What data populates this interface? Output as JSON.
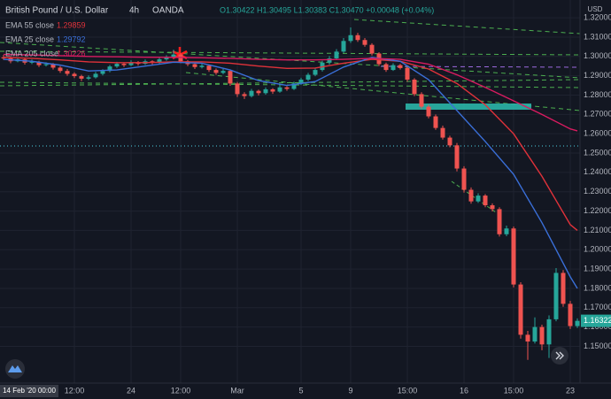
{
  "chart_data": {
    "type": "candlestick",
    "title": "British Pound / U.S. Dollar",
    "interval": "4h",
    "source": "OANDA",
    "ohlc_readout": "O1.30422 H1.30495 L1.30383 C1.30470 +0.00048 (+0.04%)",
    "y_unit": "USD",
    "cursor_label": "14 Feb '20 00:00",
    "up_color": "#26a69a",
    "down_color": "#ef5350",
    "grid": true,
    "categories": [
      null,
      null,
      null,
      null,
      null,
      null,
      null,
      null,
      null,
      null,
      "12:00",
      null,
      null,
      null,
      null,
      null,
      null,
      null,
      "24",
      null,
      null,
      null,
      null,
      null,
      null,
      "12:00",
      null,
      null,
      null,
      null,
      null,
      null,
      null,
      "Mar",
      null,
      null,
      null,
      null,
      null,
      null,
      null,
      null,
      "5",
      null,
      null,
      null,
      null,
      null,
      null,
      "9",
      null,
      null,
      null,
      null,
      null,
      null,
      null,
      "15:00",
      null,
      null,
      null,
      null,
      null,
      null,
      null,
      "16",
      null,
      null,
      null,
      null,
      null,
      null,
      "15:00",
      null,
      null,
      null,
      null,
      null,
      null,
      null,
      "23",
      null
    ],
    "ohlc": [
      [
        1.2995,
        1.3008,
        1.2982,
        1.299
      ],
      [
        1.299,
        1.3,
        1.2965,
        1.2975
      ],
      [
        1.2975,
        1.2995,
        1.297,
        1.2985
      ],
      [
        1.2985,
        1.2992,
        1.2958,
        1.2968
      ],
      [
        1.2968,
        1.2984,
        1.296,
        1.2972
      ],
      [
        1.2972,
        1.2978,
        1.2945,
        1.2955
      ],
      [
        1.2955,
        1.297,
        1.2948,
        1.296
      ],
      [
        1.296,
        1.2966,
        1.2932,
        1.2942
      ],
      [
        1.2942,
        1.295,
        1.2915,
        1.2925
      ],
      [
        1.2925,
        1.2935,
        1.29,
        1.291
      ],
      [
        1.291,
        1.2918,
        1.2888,
        1.2898
      ],
      [
        1.2898,
        1.2905,
        1.2872,
        1.2885
      ],
      [
        1.2885,
        1.2902,
        1.2878,
        1.2892
      ],
      [
        1.2892,
        1.292,
        1.2886,
        1.291
      ],
      [
        1.291,
        1.2934,
        1.2902,
        1.2925
      ],
      [
        1.2925,
        1.2956,
        1.2918,
        1.2948
      ],
      [
        1.2948,
        1.2972,
        1.294,
        1.2962
      ],
      [
        1.2962,
        1.2968,
        1.2945,
        1.2955
      ],
      [
        1.2955,
        1.298,
        1.295,
        1.297
      ],
      [
        1.297,
        1.2976,
        1.2952,
        1.2962
      ],
      [
        1.2962,
        1.2984,
        1.2956,
        1.2975
      ],
      [
        1.2975,
        1.298,
        1.2958,
        1.2968
      ],
      [
        1.2968,
        1.2994,
        1.2962,
        1.2985
      ],
      [
        1.2985,
        1.3006,
        1.2978,
        1.2998
      ],
      [
        1.2998,
        1.3035,
        1.299,
        1.301
      ],
      [
        1.301,
        1.3018,
        1.2965,
        1.2975
      ],
      [
        1.2975,
        1.2982,
        1.295,
        1.296
      ],
      [
        1.296,
        1.2966,
        1.2935,
        1.2945
      ],
      [
        1.2945,
        1.2962,
        1.2938,
        1.2952
      ],
      [
        1.2952,
        1.2958,
        1.292,
        1.293
      ],
      [
        1.293,
        1.2938,
        1.2905,
        1.2915
      ],
      [
        1.2915,
        1.2935,
        1.2908,
        1.2925
      ],
      [
        1.2925,
        1.293,
        1.2848,
        1.286
      ],
      [
        1.286,
        1.2868,
        1.279,
        1.2805
      ],
      [
        1.2805,
        1.2815,
        1.278,
        1.2795
      ],
      [
        1.2795,
        1.2832,
        1.2788,
        1.2822
      ],
      [
        1.2822,
        1.2828,
        1.2798,
        1.281
      ],
      [
        1.281,
        1.284,
        1.2802,
        1.283
      ],
      [
        1.283,
        1.2836,
        1.2806,
        1.2818
      ],
      [
        1.2818,
        1.285,
        1.2812,
        1.284
      ],
      [
        1.284,
        1.2846,
        1.2822,
        1.2832
      ],
      [
        1.2832,
        1.287,
        1.2826,
        1.286
      ],
      [
        1.286,
        1.289,
        1.2852,
        1.288
      ],
      [
        1.288,
        1.2915,
        1.2872,
        1.2905
      ],
      [
        1.2905,
        1.294,
        1.2898,
        1.293
      ],
      [
        1.293,
        1.2978,
        1.2922,
        1.2968
      ],
      [
        1.2968,
        1.3002,
        1.2958,
        1.299
      ],
      [
        1.299,
        1.3038,
        1.2982,
        1.3025
      ],
      [
        1.3025,
        1.3095,
        1.3018,
        1.308
      ],
      [
        1.308,
        1.315,
        1.307,
        1.311
      ],
      [
        1.311,
        1.3122,
        1.3075,
        1.3085
      ],
      [
        1.3085,
        1.3095,
        1.305,
        1.306
      ],
      [
        1.306,
        1.3068,
        1.3005,
        1.3015
      ],
      [
        1.3015,
        1.3022,
        1.295,
        1.296
      ],
      [
        1.296,
        1.2968,
        1.292,
        1.293
      ],
      [
        1.293,
        1.2965,
        1.2925,
        1.2955
      ],
      [
        1.2955,
        1.2962,
        1.2932,
        1.294
      ],
      [
        1.294,
        1.2948,
        1.287,
        1.288
      ],
      [
        1.288,
        1.2888,
        1.2795,
        1.2805
      ],
      [
        1.2805,
        1.2815,
        1.273,
        1.274
      ],
      [
        1.274,
        1.275,
        1.268,
        1.269
      ],
      [
        1.269,
        1.27,
        1.262,
        1.263
      ],
      [
        1.263,
        1.2642,
        1.257,
        1.258
      ],
      [
        1.258,
        1.259,
        1.253,
        1.254
      ],
      [
        1.254,
        1.2552,
        1.2405,
        1.242
      ],
      [
        1.242,
        1.2432,
        1.2295,
        1.231
      ],
      [
        1.231,
        1.2322,
        1.2238,
        1.225
      ],
      [
        1.225,
        1.2292,
        1.2242,
        1.228
      ],
      [
        1.228,
        1.2288,
        1.222,
        1.223
      ],
      [
        1.223,
        1.224,
        1.2198,
        1.221
      ],
      [
        1.221,
        1.222,
        1.2068,
        1.208
      ],
      [
        1.208,
        1.2125,
        1.207,
        1.211
      ],
      [
        1.211,
        1.212,
        1.1805,
        1.182
      ],
      [
        1.182,
        1.1832,
        1.154,
        1.156
      ],
      [
        1.156,
        1.158,
        1.143,
        1.1525
      ],
      [
        1.1525,
        1.165,
        1.1515,
        1.16
      ],
      [
        1.16,
        1.1612,
        1.148,
        1.151
      ],
      [
        1.151,
        1.166,
        1.144,
        1.164
      ],
      [
        1.164,
        1.1905,
        1.163,
        1.188
      ],
      [
        1.188,
        1.1895,
        1.1705,
        1.172
      ],
      [
        1.172,
        1.1735,
        1.159,
        1.1605
      ],
      [
        1.1605,
        1.1645,
        1.1595,
        1.1632
      ]
    ],
    "series": [
      {
        "name": "EMA 55 close",
        "last_value_label": "1.29859",
        "color": "#e0323a",
        "x": [
          0,
          4,
          8,
          12,
          16,
          20,
          24,
          28,
          32,
          36,
          40,
          44,
          48,
          52,
          56,
          60,
          64,
          68,
          72,
          76,
          80,
          81
        ],
        "values": [
          1.2995,
          1.299,
          1.2982,
          1.2972,
          1.2968,
          1.2968,
          1.2972,
          1.2972,
          1.2965,
          1.295,
          1.2938,
          1.294,
          1.2965,
          1.2985,
          1.2975,
          1.2935,
          1.286,
          1.275,
          1.26,
          1.238,
          1.213,
          1.21
        ]
      },
      {
        "name": "EMA 25 close",
        "last_value_label": "1.29792",
        "color": "#3a6fd8",
        "x": [
          0,
          4,
          8,
          12,
          16,
          20,
          24,
          28,
          32,
          36,
          40,
          44,
          48,
          52,
          56,
          60,
          64,
          68,
          72,
          76,
          80,
          81
        ],
        "values": [
          1.2985,
          1.2975,
          1.2955,
          1.2925,
          1.293,
          1.295,
          1.297,
          1.2965,
          1.293,
          1.2875,
          1.285,
          1.287,
          1.2945,
          1.2995,
          1.2975,
          1.288,
          1.272,
          1.256,
          1.239,
          1.214,
          1.186,
          1.18
        ]
      },
      {
        "name": "EMA 205 close",
        "last_value_label": "1.30226",
        "color": "#d81b60",
        "x": [
          0,
          4,
          8,
          12,
          16,
          20,
          24,
          28,
          32,
          36,
          40,
          44,
          48,
          52,
          56,
          60,
          64,
          68,
          72,
          76,
          80,
          81
        ],
        "values": [
          1.301,
          1.3008,
          1.3004,
          1.3,
          1.2998,
          1.2996,
          1.2995,
          1.2993,
          1.299,
          1.2985,
          1.2982,
          1.2982,
          1.2985,
          1.299,
          1.2985,
          1.296,
          1.2905,
          1.284,
          1.277,
          1.27,
          1.2625,
          1.2615
        ]
      }
    ],
    "last_price": {
      "value": 1.16322,
      "label": "1.16322"
    },
    "ylim": [
      1.131,
      1.3292
    ],
    "yticks": [
      {
        "value": 1.32,
        "label": "1.32000"
      },
      {
        "value": 1.31,
        "label": "1.31000"
      },
      {
        "value": 1.3,
        "label": "1.30000"
      },
      {
        "value": 1.29,
        "label": "1.29000"
      },
      {
        "value": 1.28,
        "label": "1.28000"
      },
      {
        "value": 1.27,
        "label": "1.27000"
      },
      {
        "value": 1.26,
        "label": "1.26000"
      },
      {
        "value": 1.25,
        "label": "1.25000"
      },
      {
        "value": 1.24,
        "label": "1.24000"
      },
      {
        "value": 1.23,
        "label": "1.23000"
      },
      {
        "value": 1.22,
        "label": "1.22000"
      },
      {
        "value": 1.21,
        "label": "1.21000"
      },
      {
        "value": 1.2,
        "label": "1.20000"
      },
      {
        "value": 1.19,
        "label": "1.19000"
      },
      {
        "value": 1.18,
        "label": "1.18000"
      },
      {
        "value": 1.17,
        "label": "1.17000"
      },
      {
        "value": 1.16,
        "label": "1.16000"
      },
      {
        "value": 1.15,
        "label": "1.15000"
      }
    ]
  }
}
